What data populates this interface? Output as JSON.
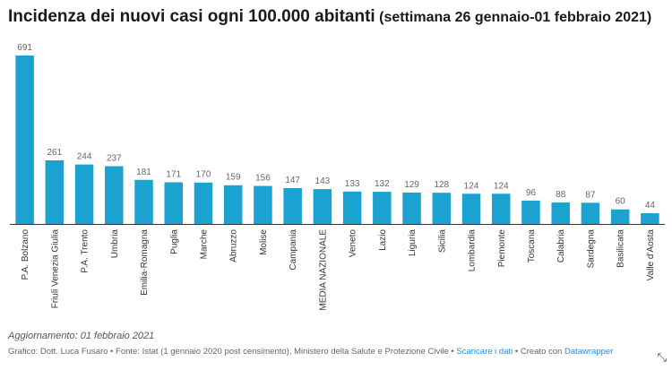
{
  "header": {
    "title": "Incidenza dei nuovi casi ogni 100.000 abitanti",
    "subtitle": "(settimana 26 gennaio-01 febbraio 2021)"
  },
  "chart_data": {
    "type": "bar",
    "title": "Incidenza dei nuovi casi ogni 100.000 abitanti",
    "subtitle": "(settimana 26 gennaio-01 febbraio 2021)",
    "xlabel": "",
    "ylabel": "",
    "ylim": [
      0,
      691
    ],
    "grid": false,
    "bar_color": "#1aa3d1",
    "categories": [
      "P.A. Bolzano",
      "Friuli Venezia Giulia",
      "P.A. Trento",
      "Umbria",
      "Emilia-Romagna",
      "Puglia",
      "Marche",
      "Abruzzo",
      "Molise",
      "Campania",
      "MEDIA NAZIONALE",
      "Veneto",
      "Lazio",
      "Liguria",
      "Sicilia",
      "Lombardia",
      "Piemonte",
      "Toscana",
      "Calabria",
      "Sardegna",
      "Basilicata",
      "Valle d'Aosta"
    ],
    "values": [
      691,
      261,
      244,
      237,
      181,
      171,
      170,
      159,
      156,
      147,
      143,
      133,
      132,
      129,
      128,
      124,
      124,
      96,
      88,
      87,
      60,
      44
    ]
  },
  "notes": {
    "update": "Aggiornamento: 01 febbraio 2021",
    "credit": "Grafico: Dott. Luca Fusaro • Fonte: Istat (1 gennaio 2020 post censimento), Ministero della Salute e Protezione Civile • ",
    "download_link": "Scaricare i dati",
    "created_with": " • Creato con ",
    "datawrapper_link": "Datawrapper"
  },
  "icons": {
    "expand": "expand-icon"
  }
}
